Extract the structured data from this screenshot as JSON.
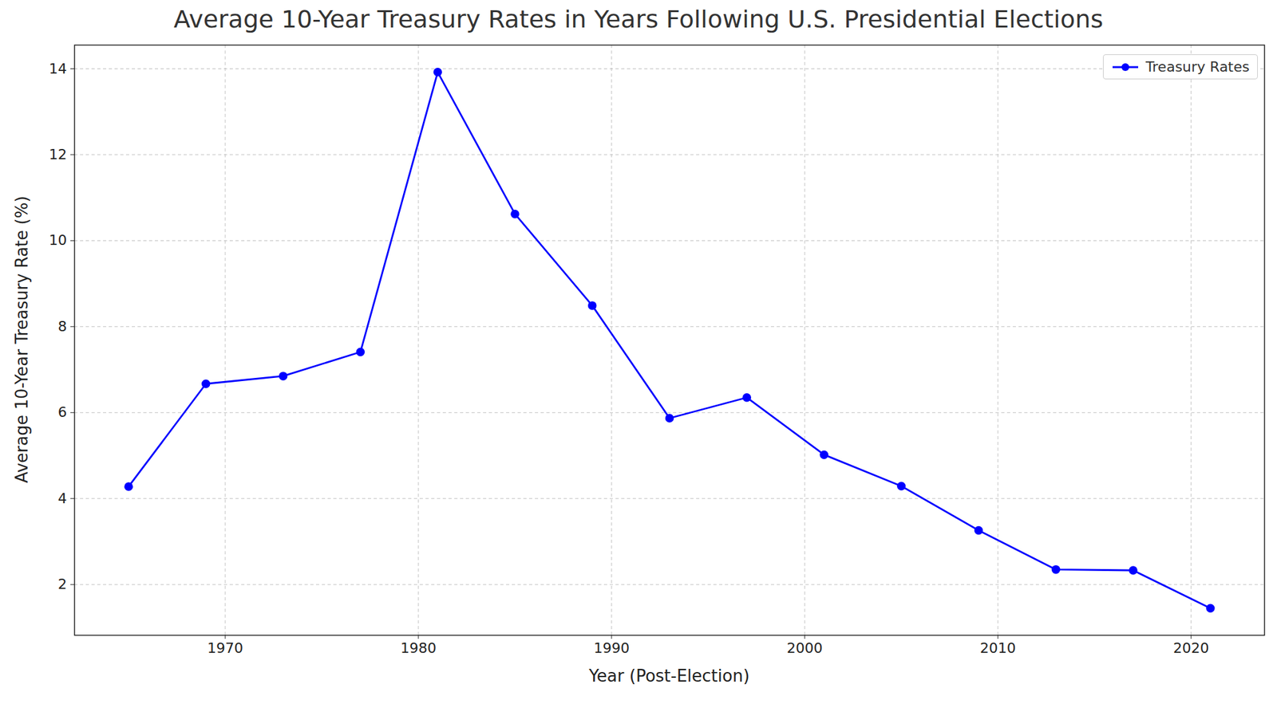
{
  "chart_data": {
    "type": "line",
    "title": "Average 10-Year Treasury Rates in Years Following U.S. Presidential Elections",
    "x_label": "Year (Post-Election)",
    "y_label": "Average 10-Year Treasury Rate (%)",
    "x": [
      1965,
      1969,
      1973,
      1977,
      1981,
      1985,
      1989,
      1993,
      1997,
      2001,
      2005,
      2009,
      2013,
      2017,
      2021
    ],
    "series": [
      {
        "name": "Treasury Rates",
        "color": "#0000ff",
        "marker": "o",
        "line_style": "solid",
        "values": [
          4.28,
          6.67,
          6.85,
          7.41,
          13.92,
          10.62,
          8.49,
          5.87,
          6.35,
          5.02,
          4.29,
          3.26,
          2.35,
          2.33,
          1.45
        ]
      }
    ],
    "xlim": [
      1962.2,
      2023.8
    ],
    "xticks": [
      1970,
      1980,
      1990,
      2000,
      2010,
      2020
    ],
    "ylim": [
      0.82,
      14.55
    ],
    "yticks": [
      2,
      4,
      6,
      8,
      10,
      12,
      14
    ],
    "grid": true,
    "legend": "upper right"
  }
}
